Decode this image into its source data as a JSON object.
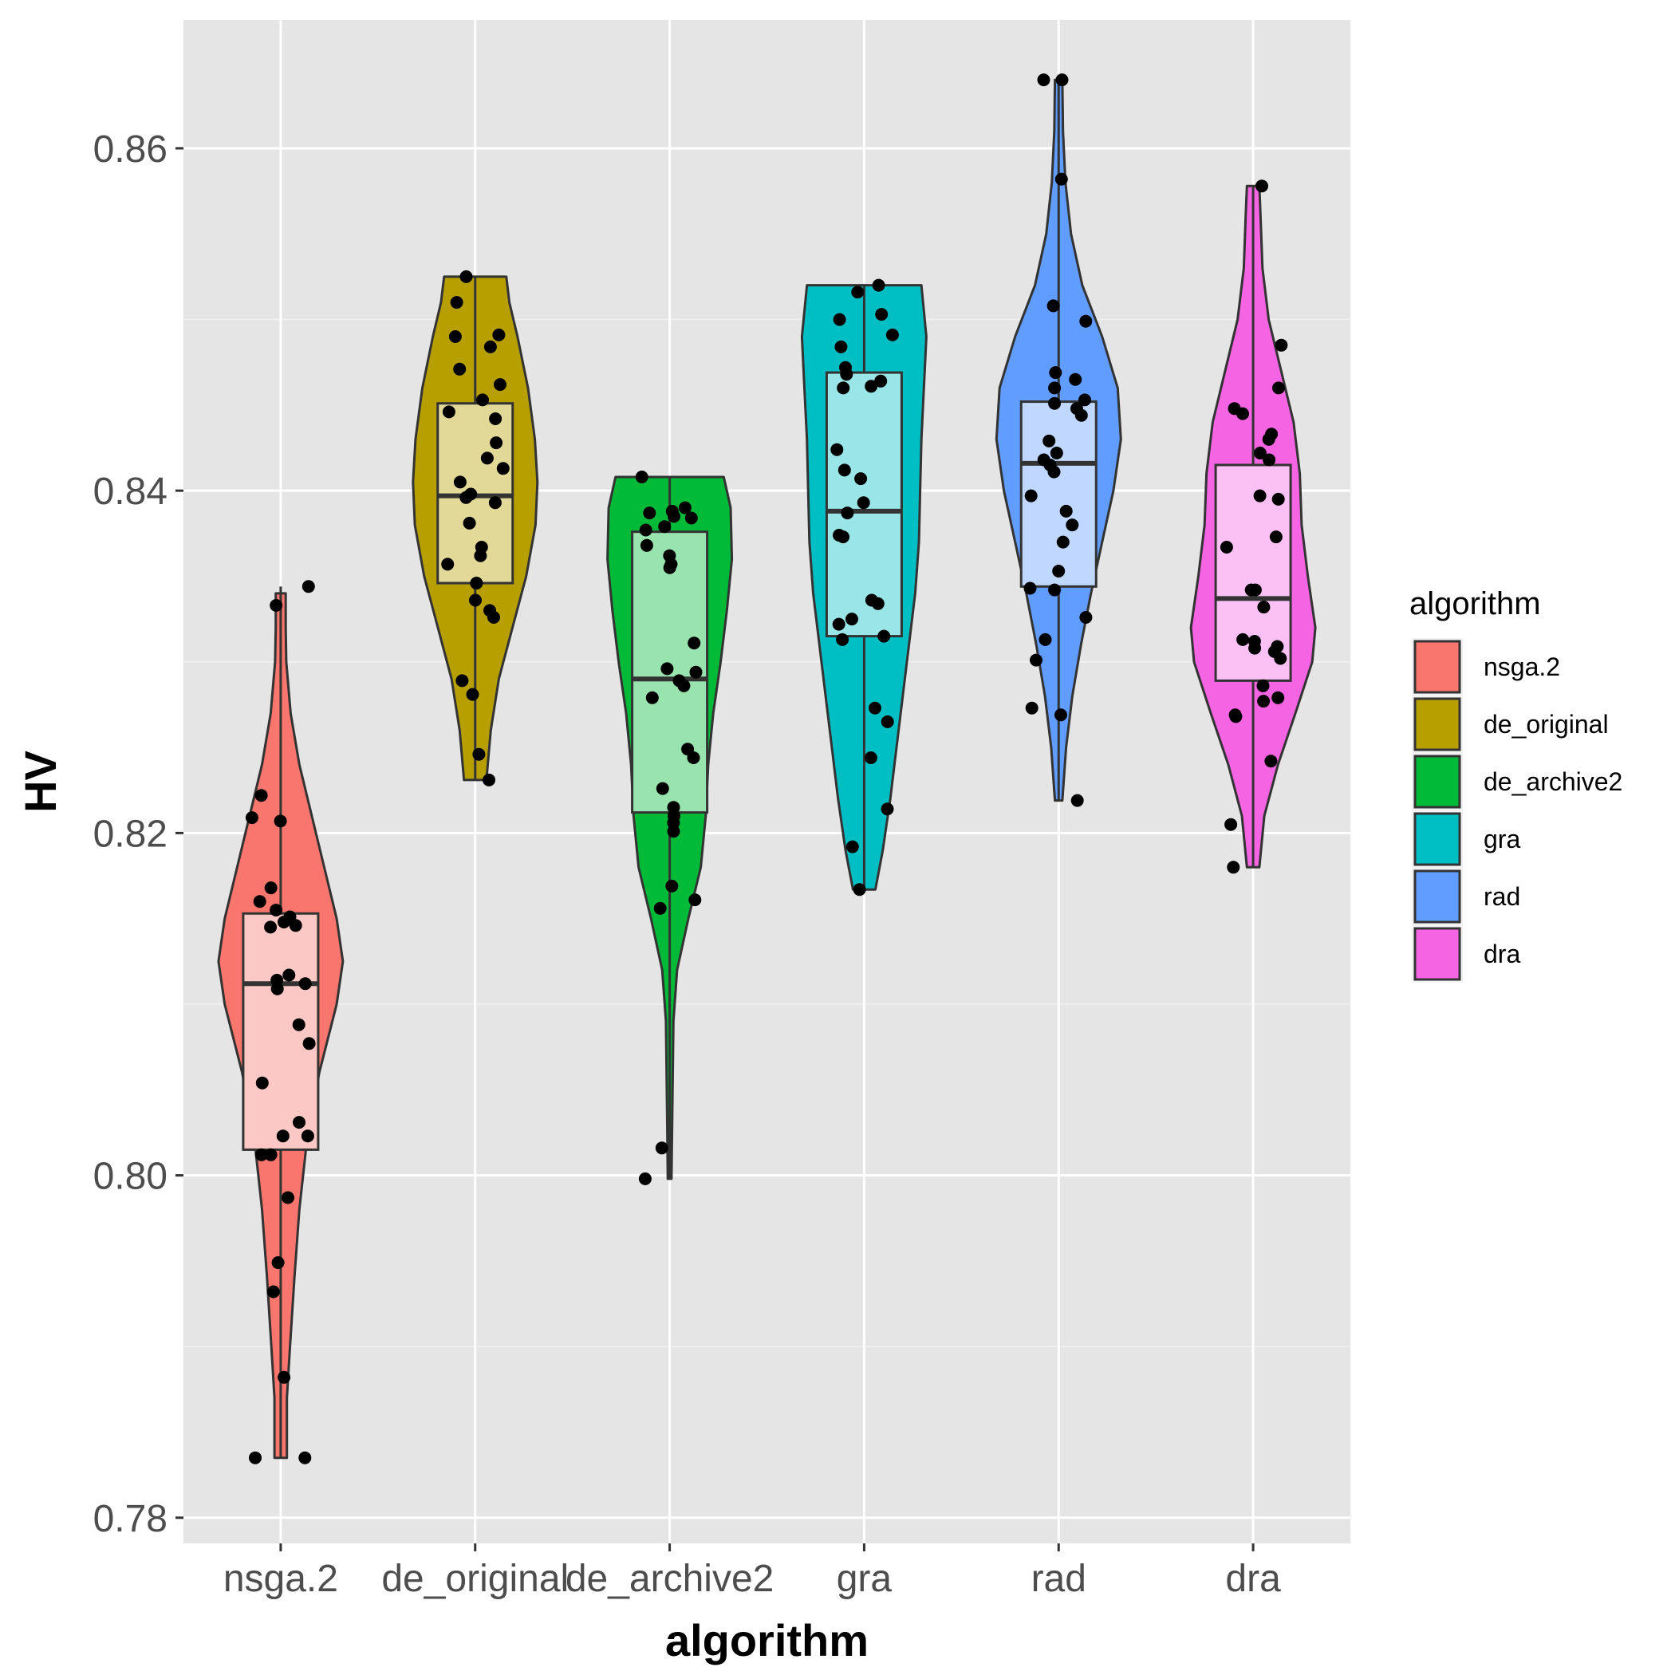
{
  "chart_data": {
    "type": "violin",
    "xlabel": "algorithm",
    "ylabel": "HV",
    "ylim": [
      0.7785,
      0.8675
    ],
    "yticks": [
      "0.78",
      "0.80",
      "0.82",
      "0.84",
      "0.86"
    ],
    "categories": [
      "nsga.2",
      "de_original",
      "de_archive2",
      "gra",
      "rad",
      "dra"
    ],
    "legend": {
      "title": "algorithm",
      "position": "right",
      "entries": [
        "nsga.2",
        "de_original",
        "de_archive2",
        "gra",
        "rad",
        "dra"
      ]
    },
    "grid": true,
    "series": [
      {
        "name": "nsga.2",
        "color": "#F8766D",
        "box": {
          "q1": 0.8015,
          "median": 0.8112,
          "q3": 0.8153,
          "min": 0.7835,
          "max": 0.8344
        },
        "violin": [
          [
            0.7835,
            0.1
          ],
          [
            0.787,
            0.1
          ],
          [
            0.79,
            0.15
          ],
          [
            0.794,
            0.22
          ],
          [
            0.798,
            0.3
          ],
          [
            0.802,
            0.42
          ],
          [
            0.806,
            0.62
          ],
          [
            0.81,
            0.9
          ],
          [
            0.8125,
            1.0
          ],
          [
            0.815,
            0.9
          ],
          [
            0.818,
            0.7
          ],
          [
            0.821,
            0.5
          ],
          [
            0.824,
            0.3
          ],
          [
            0.827,
            0.16
          ],
          [
            0.83,
            0.09
          ],
          [
            0.832,
            0.08
          ],
          [
            0.834,
            0.08
          ]
        ],
        "points": [
          0.7835,
          0.7835,
          0.7882,
          0.7932,
          0.7949,
          0.7987,
          0.8012,
          0.8012,
          0.8023,
          0.8023,
          0.8031,
          0.8054,
          0.8077,
          0.8088,
          0.8109,
          0.8112,
          0.8114,
          0.8117,
          0.8145,
          0.8146,
          0.8148,
          0.8151,
          0.8155,
          0.816,
          0.8168,
          0.8207,
          0.8209,
          0.8222,
          0.8333,
          0.8344
        ]
      },
      {
        "name": "de_original",
        "color": "#B79F00",
        "box": {
          "q1": 0.8346,
          "median": 0.8397,
          "q3": 0.8451,
          "min": 0.8231,
          "max": 0.8525
        },
        "violin": [
          [
            0.8231,
            0.18
          ],
          [
            0.826,
            0.25
          ],
          [
            0.829,
            0.38
          ],
          [
            0.832,
            0.6
          ],
          [
            0.835,
            0.82
          ],
          [
            0.838,
            0.97
          ],
          [
            0.8405,
            1.0
          ],
          [
            0.843,
            0.96
          ],
          [
            0.846,
            0.85
          ],
          [
            0.849,
            0.68
          ],
          [
            0.851,
            0.55
          ],
          [
            0.8525,
            0.5
          ]
        ],
        "points": [
          0.8231,
          0.8246,
          0.8281,
          0.8289,
          0.8326,
          0.833,
          0.8336,
          0.8346,
          0.8346,
          0.8357,
          0.8362,
          0.8367,
          0.8381,
          0.8393,
          0.8396,
          0.8398,
          0.8405,
          0.8413,
          0.8419,
          0.8428,
          0.8442,
          0.8446,
          0.8453,
          0.8462,
          0.8471,
          0.8484,
          0.849,
          0.8491,
          0.851,
          0.8525
        ]
      },
      {
        "name": "de_archive2",
        "color": "#00BA38",
        "box": {
          "q1": 0.8212,
          "median": 0.829,
          "q3": 0.8376,
          "min": 0.7998,
          "max": 0.8408
        },
        "violin": [
          [
            0.7998,
            0.03
          ],
          [
            0.803,
            0.04
          ],
          [
            0.806,
            0.05
          ],
          [
            0.809,
            0.06
          ],
          [
            0.812,
            0.12
          ],
          [
            0.815,
            0.3
          ],
          [
            0.818,
            0.5
          ],
          [
            0.821,
            0.58
          ],
          [
            0.824,
            0.62
          ],
          [
            0.827,
            0.7
          ],
          [
            0.83,
            0.82
          ],
          [
            0.833,
            0.92
          ],
          [
            0.836,
            1.0
          ],
          [
            0.839,
            0.98
          ],
          [
            0.8408,
            0.87
          ]
        ],
        "points": [
          0.7998,
          0.8016,
          0.8156,
          0.8161,
          0.8169,
          0.8201,
          0.8206,
          0.821,
          0.8215,
          0.8226,
          0.8244,
          0.8249,
          0.8279,
          0.8286,
          0.8289,
          0.8294,
          0.8296,
          0.8311,
          0.8355,
          0.8357,
          0.8362,
          0.8368,
          0.8377,
          0.8379,
          0.8384,
          0.8385,
          0.8387,
          0.8388,
          0.839,
          0.8408
        ]
      },
      {
        "name": "gra",
        "color": "#00BFC4",
        "box": {
          "q1": 0.8315,
          "median": 0.8388,
          "q3": 0.8469,
          "min": 0.8167,
          "max": 0.852
        },
        "violin": [
          [
            0.8167,
            0.18
          ],
          [
            0.819,
            0.3
          ],
          [
            0.822,
            0.42
          ],
          [
            0.825,
            0.52
          ],
          [
            0.828,
            0.62
          ],
          [
            0.831,
            0.72
          ],
          [
            0.834,
            0.82
          ],
          [
            0.837,
            0.88
          ],
          [
            0.84,
            0.9
          ],
          [
            0.843,
            0.92
          ],
          [
            0.846,
            0.96
          ],
          [
            0.849,
            1.0
          ],
          [
            0.852,
            0.92
          ]
        ],
        "points": [
          0.8167,
          0.8192,
          0.8214,
          0.8244,
          0.8265,
          0.8273,
          0.8313,
          0.8315,
          0.8322,
          0.8325,
          0.8334,
          0.8336,
          0.8373,
          0.8374,
          0.8387,
          0.8393,
          0.8407,
          0.8412,
          0.8424,
          0.846,
          0.8461,
          0.8464,
          0.8468,
          0.8472,
          0.8484,
          0.8491,
          0.85,
          0.8503,
          0.8516,
          0.852
        ]
      },
      {
        "name": "rad",
        "color": "#619CFF",
        "box": {
          "q1": 0.8344,
          "median": 0.8416,
          "q3": 0.8452,
          "min": 0.8219,
          "max": 0.864
        },
        "violin": [
          [
            0.8219,
            0.06
          ],
          [
            0.825,
            0.12
          ],
          [
            0.828,
            0.22
          ],
          [
            0.831,
            0.36
          ],
          [
            0.834,
            0.52
          ],
          [
            0.837,
            0.7
          ],
          [
            0.84,
            0.88
          ],
          [
            0.843,
            1.0
          ],
          [
            0.846,
            0.95
          ],
          [
            0.849,
            0.7
          ],
          [
            0.852,
            0.38
          ],
          [
            0.855,
            0.2
          ],
          [
            0.858,
            0.11
          ],
          [
            0.861,
            0.07
          ],
          [
            0.864,
            0.06
          ]
        ],
        "points": [
          0.8219,
          0.8269,
          0.8273,
          0.8301,
          0.8313,
          0.8326,
          0.8342,
          0.8343,
          0.8353,
          0.837,
          0.838,
          0.8388,
          0.8397,
          0.8411,
          0.8415,
          0.8418,
          0.8422,
          0.8429,
          0.8444,
          0.8448,
          0.8451,
          0.8453,
          0.846,
          0.8465,
          0.8469,
          0.8499,
          0.8508,
          0.8582,
          0.864,
          0.864
        ]
      },
      {
        "name": "dra",
        "color": "#F564E3",
        "box": {
          "q1": 0.8289,
          "median": 0.8337,
          "q3": 0.8415,
          "min": 0.818,
          "max": 0.8578
        },
        "violin": [
          [
            0.818,
            0.1
          ],
          [
            0.821,
            0.18
          ],
          [
            0.824,
            0.4
          ],
          [
            0.827,
            0.68
          ],
          [
            0.83,
            0.95
          ],
          [
            0.832,
            1.0
          ],
          [
            0.835,
            0.88
          ],
          [
            0.838,
            0.78
          ],
          [
            0.841,
            0.75
          ],
          [
            0.844,
            0.65
          ],
          [
            0.847,
            0.45
          ],
          [
            0.85,
            0.25
          ],
          [
            0.853,
            0.15
          ],
          [
            0.856,
            0.12
          ],
          [
            0.8578,
            0.1
          ]
        ],
        "points": [
          0.818,
          0.8205,
          0.8242,
          0.8268,
          0.8269,
          0.8277,
          0.8279,
          0.8286,
          0.8302,
          0.8306,
          0.8308,
          0.8309,
          0.8312,
          0.8313,
          0.8332,
          0.8342,
          0.8342,
          0.8367,
          0.8373,
          0.8395,
          0.8397,
          0.8418,
          0.8422,
          0.843,
          0.8433,
          0.8445,
          0.8448,
          0.846,
          0.8485,
          0.8578
        ]
      }
    ]
  }
}
